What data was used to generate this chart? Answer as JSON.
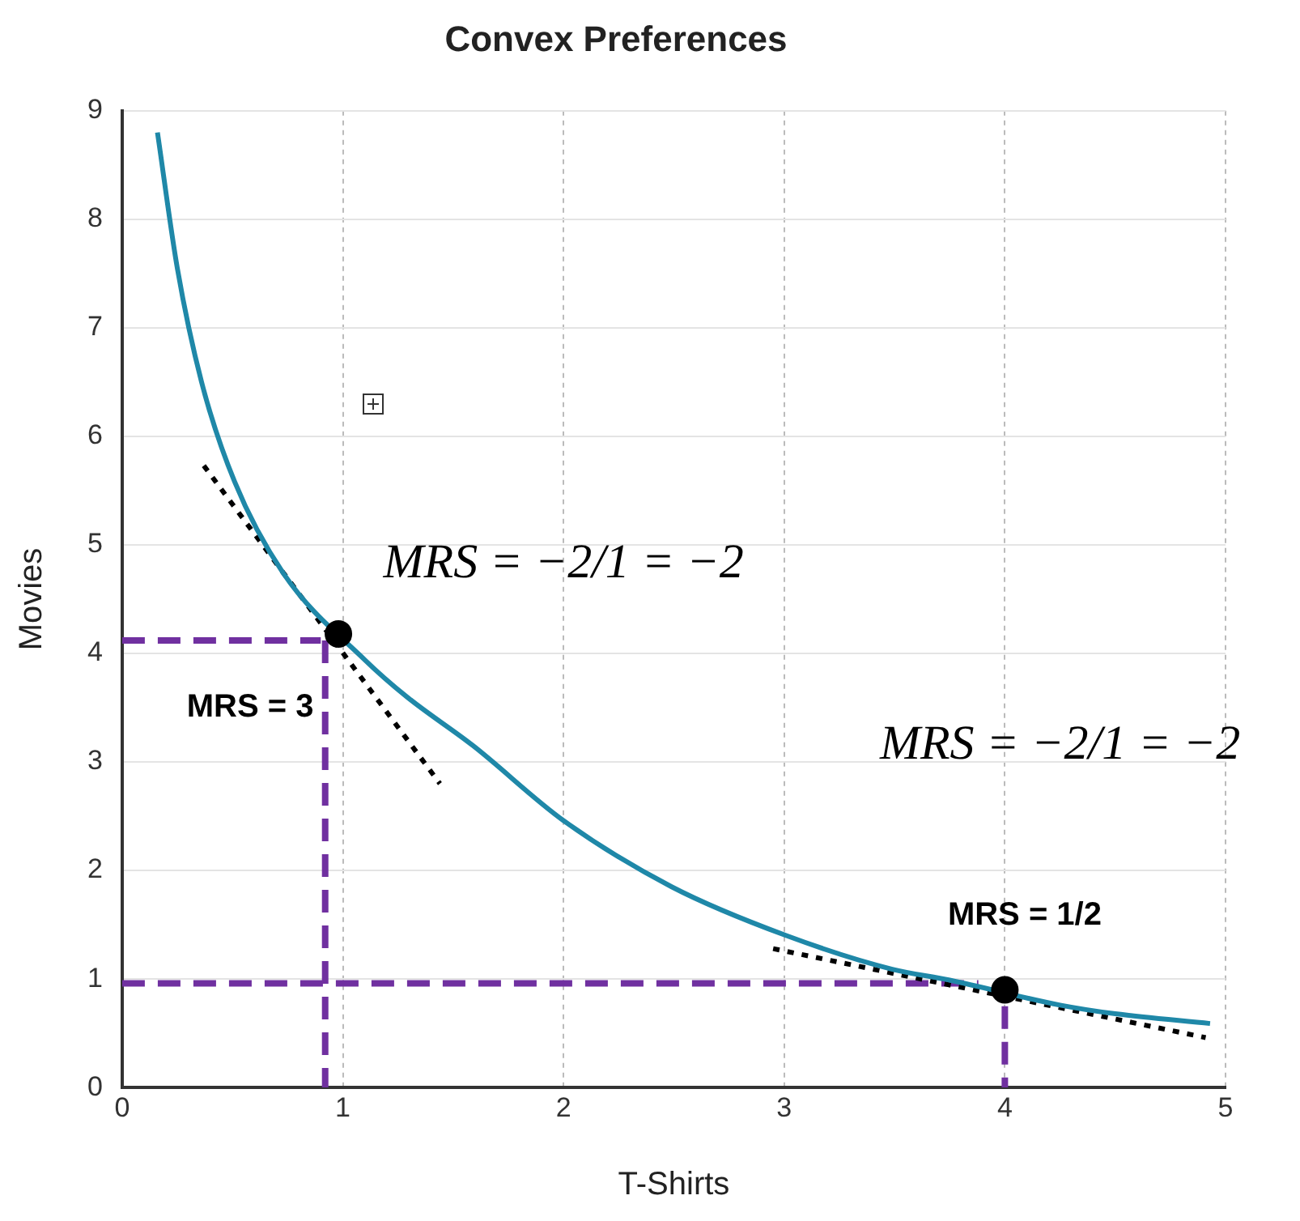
{
  "chart_data": {
    "type": "line",
    "title": "Convex Preferences",
    "xlabel": "T-Shirts",
    "ylabel": "Movies",
    "xlim": [
      0,
      5
    ],
    "xticks": [
      0,
      1,
      2,
      3,
      4,
      5
    ],
    "ylim": [
      0,
      9
    ],
    "yticks": [
      0,
      1,
      2,
      3,
      4,
      5,
      6,
      7,
      8,
      9
    ],
    "grid": true,
    "legend": false,
    "series": [
      {
        "color": "#1f88a8",
        "marker": "none",
        "line_style": "solid",
        "x": [
          0.16,
          0.25,
          0.36,
          0.51,
          0.73,
          1.1,
          1.29,
          1.59,
          2.0,
          2.49,
          3.01,
          3.49,
          3.75,
          4.25,
          4.5,
          4.93
        ],
        "values": [
          8.8,
          7.55,
          6.5,
          5.58,
          4.74,
          3.94,
          3.6,
          3.15,
          2.46,
          1.85,
          1.4,
          1.09,
          0.99,
          0.76,
          0.68,
          0.59
        ]
      },
      {
        "color": "#000000",
        "marker": "none",
        "line_style": "dotted",
        "x": [
          0.37,
          1.44,
          null,
          2.95,
          4.91
        ],
        "values": [
          5.73,
          2.8,
          null,
          1.28,
          0.46
        ]
      },
      {
        "color": "#7030a0",
        "marker": "none",
        "line_style": "dashed",
        "x": [
          0,
          0.9,
          null,
          0.92,
          0.92,
          null,
          0,
          3.88,
          null,
          4.0,
          4.0
        ],
        "values": [
          4.12,
          4.12,
          null,
          4.12,
          0,
          null,
          0.96,
          0.96,
          null,
          0.75,
          0
        ]
      },
      {
        "type": "scatter",
        "color": "#000000",
        "marker": "circle",
        "x": [
          0.98,
          4.0
        ],
        "values": [
          4.18,
          0.9
        ]
      }
    ],
    "annotations": [
      "MRS = −2/1 = −2",
      "MRS = −2/1 = −2",
      "MRS = 3",
      "MRS = 1/2"
    ]
  }
}
